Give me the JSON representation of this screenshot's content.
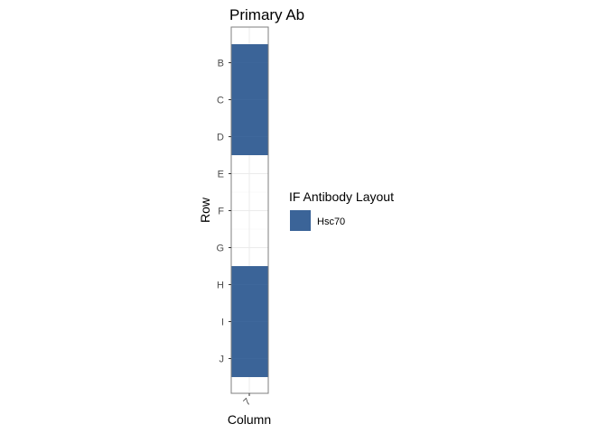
{
  "chart_data": {
    "type": "heatmap",
    "title": "Primary Ab",
    "xlabel": "Column",
    "ylabel": "Row",
    "x_categories": [
      "7"
    ],
    "y_categories": [
      "B",
      "C",
      "D",
      "E",
      "F",
      "G",
      "H",
      "I",
      "J"
    ],
    "filled_cells": [
      {
        "column": "7",
        "row": "B",
        "antibody": "Hsc70"
      },
      {
        "column": "7",
        "row": "C",
        "antibody": "Hsc70"
      },
      {
        "column": "7",
        "row": "D",
        "antibody": "Hsc70"
      },
      {
        "column": "7",
        "row": "H",
        "antibody": "Hsc70"
      },
      {
        "column": "7",
        "row": "I",
        "antibody": "Hsc70"
      },
      {
        "column": "7",
        "row": "J",
        "antibody": "Hsc70"
      }
    ],
    "legend": {
      "title": "IF Antibody Layout",
      "placement": "right",
      "entries": [
        {
          "label": "Hsc70",
          "color": "#3b6498"
        }
      ]
    },
    "grid": true
  },
  "colors": {
    "fill": "#3b6498",
    "panel_border": "#7f7f7f",
    "grid_major": "#ebebeb"
  }
}
